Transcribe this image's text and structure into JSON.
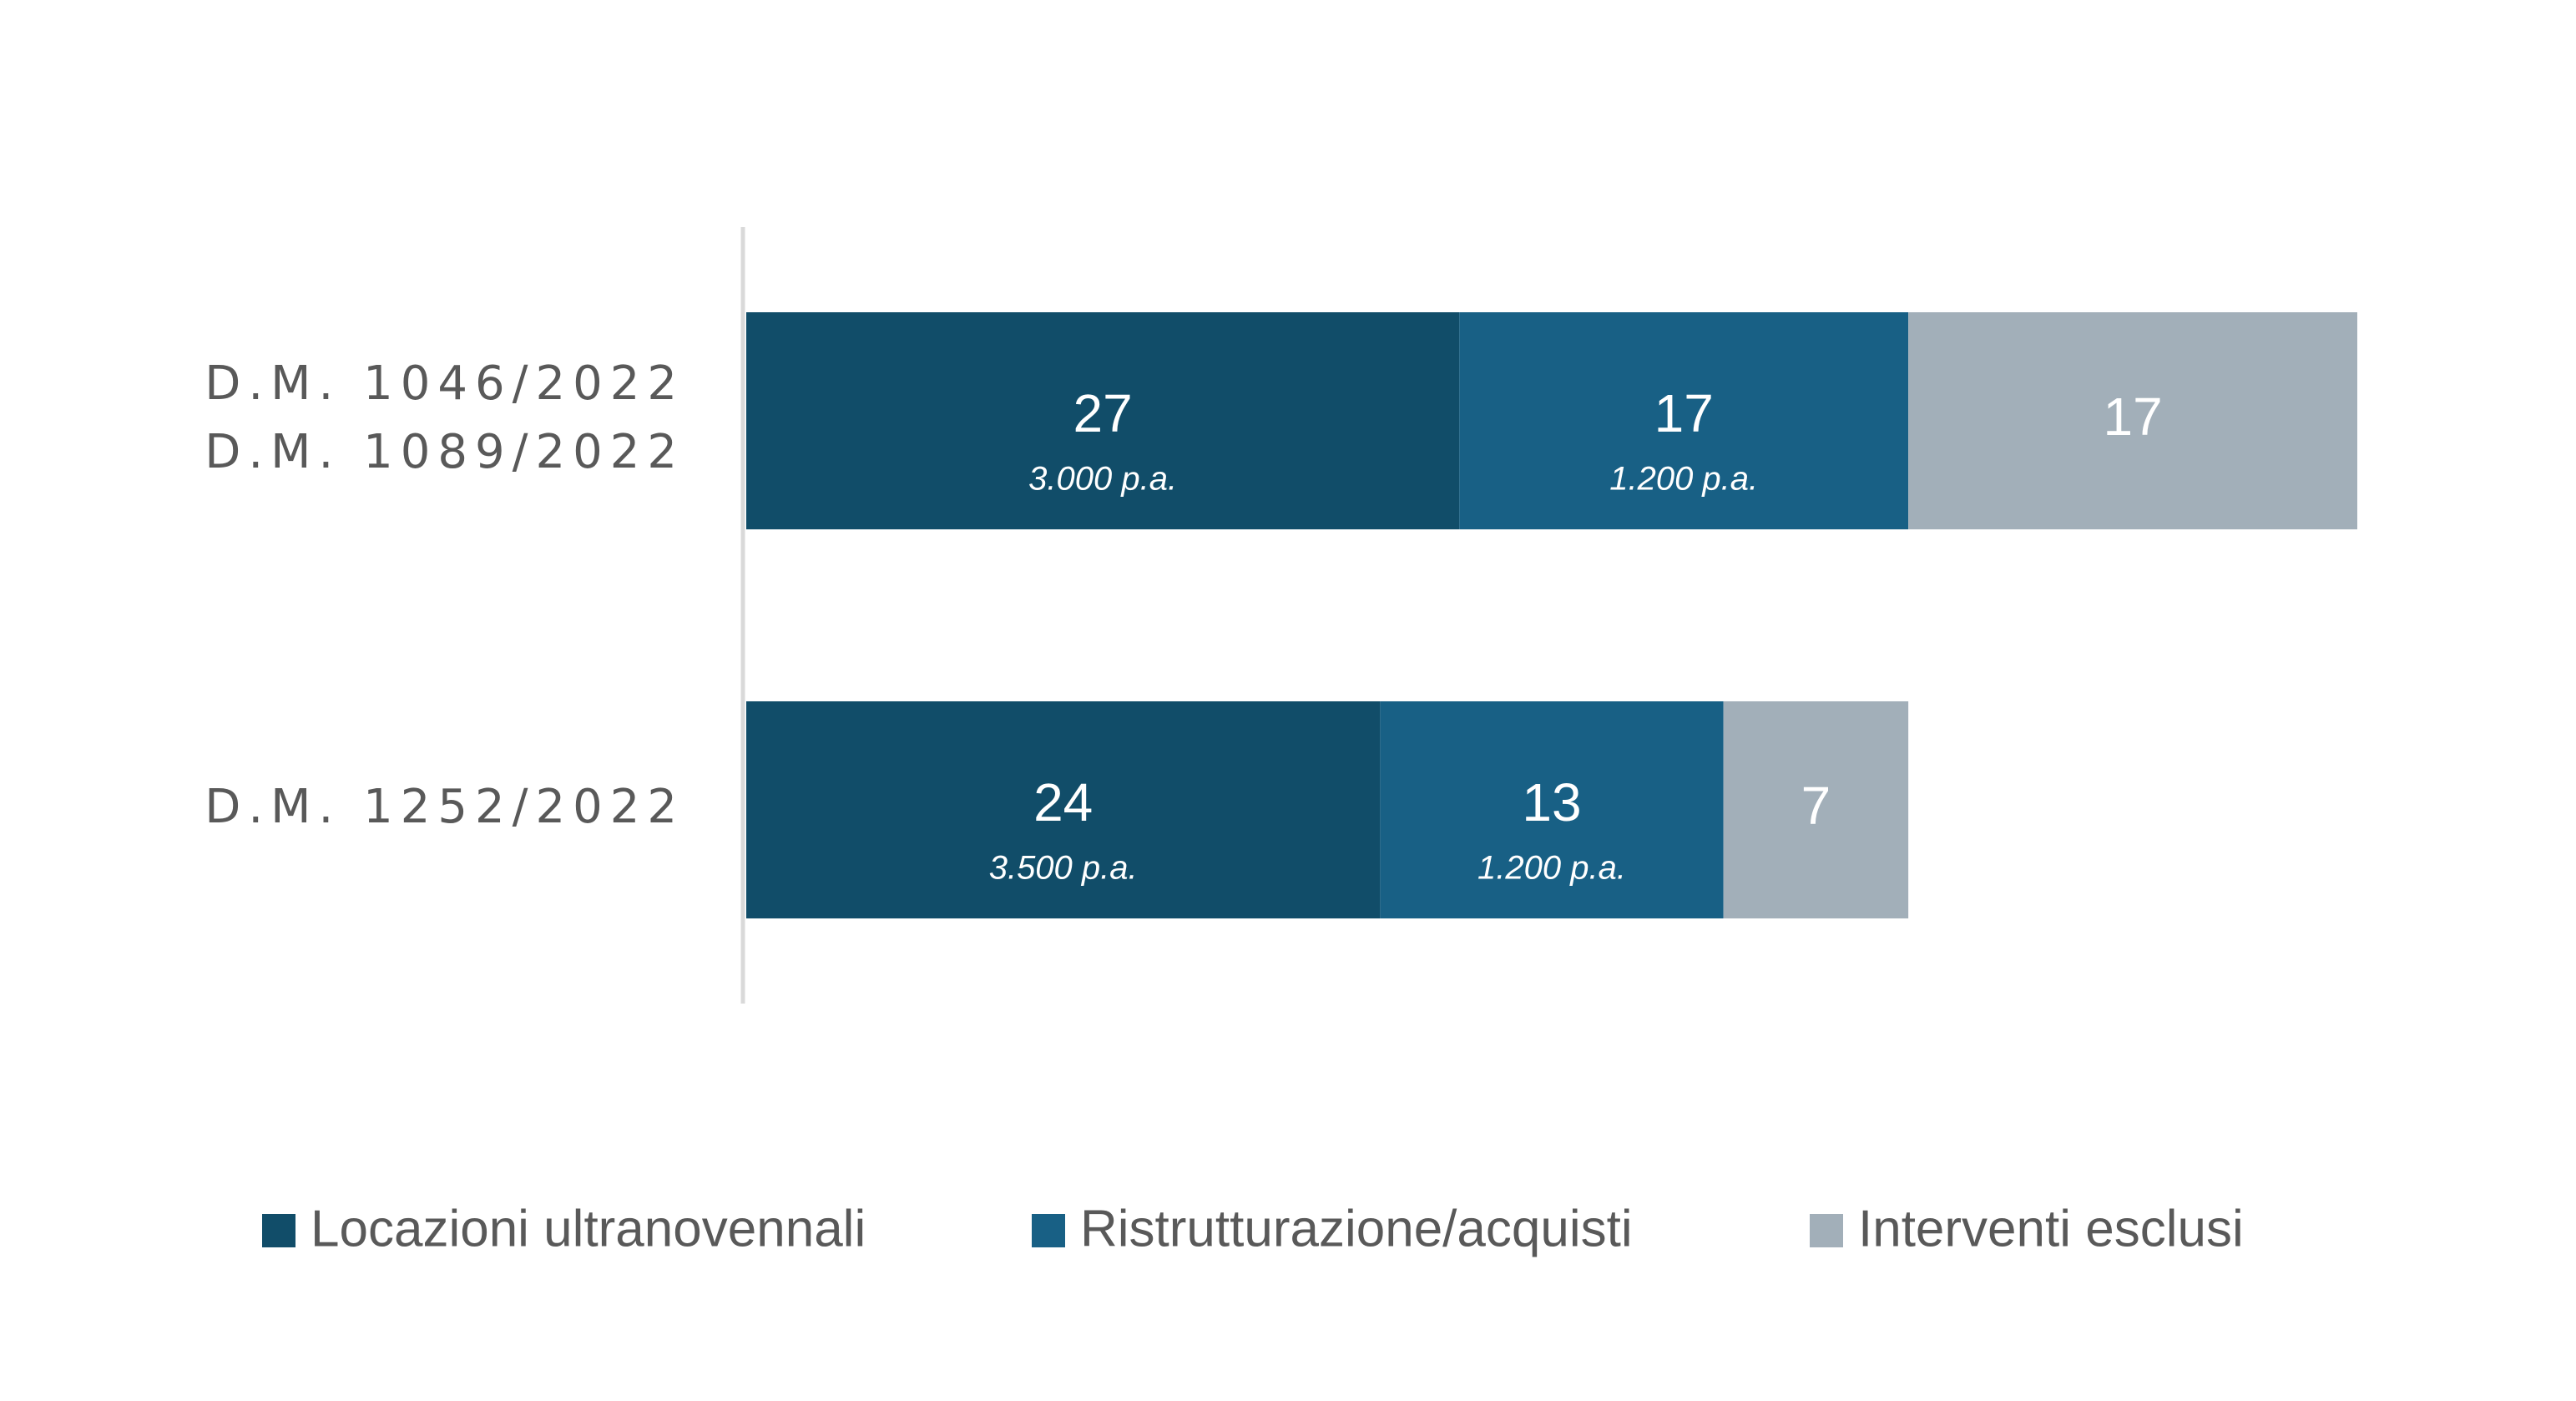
{
  "chart_data": {
    "type": "stacked-bar-horizontal",
    "categories": [
      [
        "D.M. 1046/2022",
        "D.M. 1089/2022"
      ],
      [
        "D.M. 1252/2022"
      ]
    ],
    "series": [
      {
        "name": "Locazioni ultranovennali",
        "color": "#114d69",
        "values": [
          27,
          24
        ],
        "value_sublabels": [
          "3.000 p.a.",
          "3.500 p.a."
        ]
      },
      {
        "name": "Ristrutturazione/acquisti",
        "color": "#186085",
        "values": [
          17,
          13
        ],
        "value_sublabels": [
          "1.200 p.a.",
          "1.200 p.a."
        ]
      },
      {
        "name": "Interventi esclusi",
        "color": "#a2afb9",
        "values": [
          17,
          7
        ]
      }
    ],
    "legend": "bottom"
  }
}
